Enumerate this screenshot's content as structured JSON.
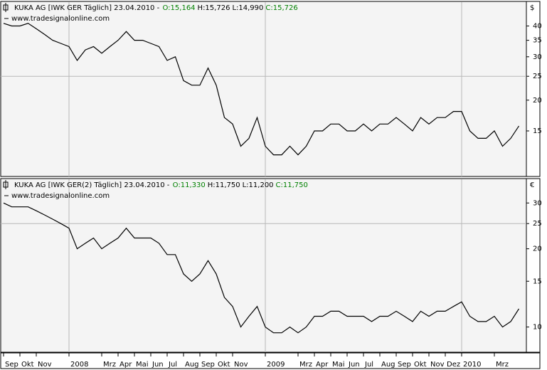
{
  "chart_data": [
    {
      "type": "line",
      "title": "KUKA AG [IWK GER  Täglich] 23.04.2010 -",
      "header_values": [
        "O:15,164",
        "H:15,726",
        "L:14,990",
        "C:15,726"
      ],
      "subtitle": "www.tradesignalonline.com",
      "currency": "$",
      "log_scale": true,
      "color": "#000000",
      "ylim": [
        9.8,
        50
      ],
      "yticks": [
        40,
        35,
        30,
        25,
        20,
        15
      ],
      "ygrid": [
        25
      ],
      "values": [
        41,
        40,
        40,
        41,
        39,
        37,
        35,
        34,
        33,
        29,
        32,
        33,
        31,
        33,
        35,
        38,
        35,
        35,
        34,
        33,
        29,
        30,
        24,
        23,
        23,
        27,
        23,
        17,
        16,
        13,
        14,
        17,
        13,
        12,
        12,
        13,
        12,
        13,
        15,
        15,
        16,
        16,
        15,
        15,
        16,
        15,
        16,
        16,
        17,
        16,
        15,
        17,
        16,
        17,
        17,
        18,
        18,
        15,
        14,
        14,
        15,
        13,
        14,
        15.7
      ]
    },
    {
      "type": "line",
      "title": "KUKA AG [IWK GER(2)  Täglich] 23.04.2010 -",
      "header_values": [
        "O:11,330",
        "H:11,750",
        "L:11,200",
        "C:11,750"
      ],
      "subtitle": "www.tradesignalonline.com",
      "currency": "€",
      "log_scale": true,
      "color": "#000000",
      "ylim": [
        8,
        37
      ],
      "yticks": [
        30,
        25,
        20,
        15,
        10
      ],
      "ygrid": [
        25
      ],
      "categories": [
        "Sep",
        null,
        "Okt",
        null,
        "Nov",
        null,
        null,
        null,
        "2008",
        null,
        null,
        null,
        "Mrz",
        null,
        "Apr",
        null,
        "Mai",
        null,
        "Jun",
        null,
        "Jul",
        null,
        "Aug",
        null,
        "Sep",
        null,
        "Okt",
        null,
        "Nov",
        null,
        null,
        null,
        "2009",
        null,
        null,
        null,
        "Mrz",
        null,
        "Apr",
        null,
        "Mai",
        null,
        "Jun",
        null,
        "Jul",
        null,
        "Aug",
        null,
        "Sep",
        null,
        "Okt",
        null,
        "Nov",
        null,
        "Dez",
        null,
        "2010",
        null,
        null,
        null,
        "Mrz",
        null,
        null,
        null
      ],
      "values": [
        30,
        29,
        29,
        29,
        28,
        27,
        26,
        25,
        24,
        20,
        21,
        22,
        20,
        21,
        22,
        24,
        22,
        22,
        22,
        21,
        19,
        19,
        16,
        15,
        16,
        18,
        16,
        13,
        12,
        10,
        11,
        12,
        10,
        9.5,
        9.5,
        10,
        9.5,
        10,
        11,
        11,
        11.5,
        11.5,
        11,
        11,
        11,
        10.5,
        11,
        11,
        11.5,
        11,
        10.5,
        11.5,
        11,
        11.5,
        11.5,
        12,
        12.5,
        11,
        10.5,
        10.5,
        11,
        10,
        10.5,
        11.75
      ]
    }
  ]
}
